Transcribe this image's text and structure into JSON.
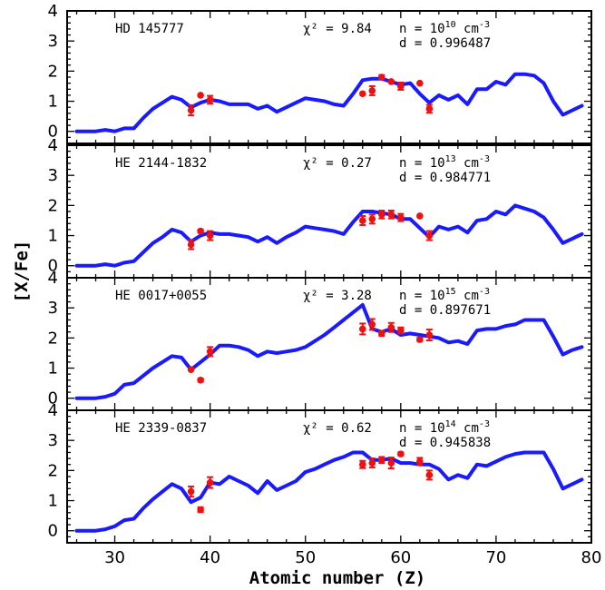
{
  "chart_data": {
    "type": "line",
    "xlabel": "Atomic number (Z)",
    "ylabel": "[X/Fe]",
    "xlim": [
      25,
      80
    ],
    "ylim": [
      -0.4,
      4
    ],
    "x_ticks": [
      "30",
      "40",
      "50",
      "60",
      "70",
      "80"
    ],
    "y_ticks": [
      "0",
      "1",
      "2",
      "3",
      "4"
    ],
    "line_color": "#1a1aff",
    "point_color": "#ee1111",
    "panels": [
      {
        "star": "HD 145777",
        "chi2_label": "χ² = 9.84",
        "n_label": "n = 10",
        "n_exp": "10",
        "n_unit": "cm",
        "n_unit_exp": "-3",
        "d_label": "d = 0.996487",
        "model": {
          "x": [
            26,
            28,
            29,
            30,
            31,
            32,
            33,
            34,
            35,
            36,
            37,
            38,
            39,
            40,
            41,
            42,
            43,
            44,
            45,
            46,
            47,
            48,
            49,
            50,
            51,
            52,
            53,
            54,
            55,
            56,
            57,
            58,
            59,
            60,
            61,
            62,
            63,
            64,
            65,
            66,
            67,
            68,
            69,
            70,
            71,
            72,
            73,
            74,
            75,
            76,
            77,
            78,
            79
          ],
          "y": [
            0,
            0,
            0.05,
            0,
            0.1,
            0.1,
            0.45,
            0.75,
            0.95,
            1.15,
            1.05,
            0.8,
            0.95,
            1.05,
            1.0,
            0.9,
            0.9,
            0.9,
            0.75,
            0.85,
            0.65,
            0.8,
            0.95,
            1.1,
            1.05,
            1.0,
            0.9,
            0.85,
            1.25,
            1.7,
            1.75,
            1.75,
            1.65,
            1.55,
            1.6,
            1.25,
            0.95,
            1.2,
            1.05,
            1.2,
            0.9,
            1.4,
            1.4,
            1.65,
            1.55,
            1.9,
            1.9,
            1.85,
            1.6,
            1.0,
            0.55,
            0.7,
            0.85
          ]
        },
        "points": [
          {
            "x": 38,
            "y": 0.7,
            "err": 0.17
          },
          {
            "x": 39,
            "y": 1.2,
            "err": 0
          },
          {
            "x": 40,
            "y": 1.05,
            "err": 0.13
          },
          {
            "x": 56,
            "y": 1.25,
            "err": 0
          },
          {
            "x": 57,
            "y": 1.35,
            "err": 0.15
          },
          {
            "x": 58,
            "y": 1.8,
            "err": 0.07
          },
          {
            "x": 59,
            "y": 1.65,
            "err": 0
          },
          {
            "x": 60,
            "y": 1.5,
            "err": 0.12
          },
          {
            "x": 62,
            "y": 1.6,
            "err": 0
          },
          {
            "x": 63,
            "y": 0.75,
            "err": 0.13
          }
        ]
      },
      {
        "star": "HE 2144-1832",
        "chi2_label": "χ² = 0.27",
        "n_label": "n = 10",
        "n_exp": "13",
        "n_unit": "cm",
        "n_unit_exp": "-3",
        "d_label": "d = 0.984771",
        "model": {
          "x": [
            26,
            28,
            29,
            30,
            31,
            32,
            33,
            34,
            35,
            36,
            37,
            38,
            39,
            40,
            41,
            42,
            43,
            44,
            45,
            46,
            47,
            48,
            49,
            50,
            51,
            52,
            53,
            54,
            55,
            56,
            57,
            58,
            59,
            60,
            61,
            62,
            63,
            64,
            65,
            66,
            67,
            68,
            69,
            70,
            71,
            72,
            73,
            74,
            75,
            76,
            77,
            78,
            79
          ],
          "y": [
            0,
            0,
            0.05,
            0,
            0.1,
            0.15,
            0.45,
            0.75,
            0.95,
            1.2,
            1.1,
            0.8,
            1.0,
            1.1,
            1.05,
            1.05,
            1.0,
            0.95,
            0.8,
            0.95,
            0.75,
            0.95,
            1.1,
            1.3,
            1.25,
            1.2,
            1.15,
            1.05,
            1.45,
            1.8,
            1.8,
            1.75,
            1.7,
            1.55,
            1.55,
            1.25,
            0.95,
            1.3,
            1.2,
            1.3,
            1.1,
            1.5,
            1.55,
            1.8,
            1.7,
            2.0,
            1.9,
            1.8,
            1.6,
            1.2,
            0.75,
            0.9,
            1.05
          ]
        },
        "points": [
          {
            "x": 38,
            "y": 0.7,
            "err": 0.15
          },
          {
            "x": 39,
            "y": 1.15,
            "err": 0.05
          },
          {
            "x": 40,
            "y": 1.0,
            "err": 0.15
          },
          {
            "x": 56,
            "y": 1.5,
            "err": 0.15
          },
          {
            "x": 57,
            "y": 1.55,
            "err": 0.15
          },
          {
            "x": 58,
            "y": 1.7,
            "err": 0.13
          },
          {
            "x": 59,
            "y": 1.7,
            "err": 0.13
          },
          {
            "x": 60,
            "y": 1.6,
            "err": 0.12
          },
          {
            "x": 62,
            "y": 1.65,
            "err": 0
          },
          {
            "x": 63,
            "y": 1.0,
            "err": 0.15
          }
        ]
      },
      {
        "star": "HE 0017+0055",
        "chi2_label": "χ² = 3.28",
        "n_label": "n = 10",
        "n_exp": "15",
        "n_unit": "cm",
        "n_unit_exp": "-3",
        "d_label": "d = 0.897671",
        "model": {
          "x": [
            26,
            28,
            29,
            30,
            31,
            32,
            33,
            34,
            35,
            36,
            37,
            38,
            39,
            40,
            41,
            42,
            43,
            44,
            45,
            46,
            47,
            48,
            49,
            50,
            51,
            52,
            53,
            54,
            55,
            56,
            57,
            58,
            59,
            60,
            61,
            62,
            63,
            64,
            65,
            66,
            67,
            68,
            69,
            70,
            71,
            72,
            73,
            74,
            75,
            76,
            77,
            78,
            79
          ],
          "y": [
            0,
            0,
            0.05,
            0.15,
            0.45,
            0.5,
            0.75,
            1.0,
            1.2,
            1.4,
            1.35,
            0.95,
            1.2,
            1.45,
            1.75,
            1.75,
            1.7,
            1.6,
            1.4,
            1.55,
            1.5,
            1.55,
            1.6,
            1.7,
            1.9,
            2.1,
            2.35,
            2.6,
            2.85,
            3.1,
            2.3,
            2.2,
            2.3,
            2.1,
            2.15,
            2.1,
            2.05,
            2.0,
            1.85,
            1.9,
            1.8,
            2.25,
            2.3,
            2.3,
            2.4,
            2.45,
            2.6,
            2.6,
            2.6,
            2.05,
            1.45,
            1.6,
            1.7
          ]
        },
        "points": [
          {
            "x": 38,
            "y": 0.95,
            "err": 0
          },
          {
            "x": 39,
            "y": 0.6,
            "err": 0.05
          },
          {
            "x": 40,
            "y": 1.55,
            "err": 0.15
          },
          {
            "x": 56,
            "y": 2.3,
            "err": 0.18
          },
          {
            "x": 57,
            "y": 2.45,
            "err": 0.18
          },
          {
            "x": 58,
            "y": 2.15,
            "err": 0.08
          },
          {
            "x": 59,
            "y": 2.35,
            "err": 0.15
          },
          {
            "x": 60,
            "y": 2.25,
            "err": 0.1
          },
          {
            "x": 62,
            "y": 1.95,
            "err": 0.05
          },
          {
            "x": 63,
            "y": 2.1,
            "err": 0.18
          }
        ]
      },
      {
        "star": "HE 2339-0837",
        "chi2_label": "χ² = 0.62",
        "n_label": "n = 10",
        "n_exp": "14",
        "n_unit": "cm",
        "n_unit_exp": "-3",
        "d_label": "d = 0.945838",
        "model": {
          "x": [
            26,
            28,
            29,
            30,
            31,
            32,
            33,
            34,
            35,
            36,
            37,
            38,
            39,
            40,
            41,
            42,
            43,
            44,
            45,
            46,
            47,
            48,
            49,
            50,
            51,
            52,
            53,
            54,
            55,
            56,
            57,
            58,
            59,
            60,
            61,
            62,
            63,
            64,
            65,
            66,
            67,
            68,
            69,
            70,
            71,
            72,
            73,
            74,
            75,
            76,
            77,
            78,
            79
          ],
          "y": [
            0,
            0,
            0.05,
            0.15,
            0.35,
            0.4,
            0.75,
            1.05,
            1.3,
            1.55,
            1.4,
            0.95,
            1.1,
            1.6,
            1.55,
            1.8,
            1.65,
            1.5,
            1.25,
            1.65,
            1.35,
            1.5,
            1.65,
            1.95,
            2.05,
            2.2,
            2.35,
            2.45,
            2.6,
            2.6,
            2.35,
            2.35,
            2.4,
            2.25,
            2.25,
            2.2,
            2.2,
            2.05,
            1.7,
            1.85,
            1.75,
            2.2,
            2.15,
            2.3,
            2.45,
            2.55,
            2.6,
            2.6,
            2.6,
            2.05,
            1.4,
            1.55,
            1.7
          ]
        },
        "points": [
          {
            "x": 38,
            "y": 1.3,
            "err": 0.17
          },
          {
            "x": 39,
            "y": 0.7,
            "err": 0.08
          },
          {
            "x": 40,
            "y": 1.6,
            "err": 0.18
          },
          {
            "x": 56,
            "y": 2.2,
            "err": 0.12
          },
          {
            "x": 57,
            "y": 2.25,
            "err": 0.15
          },
          {
            "x": 58,
            "y": 2.35,
            "err": 0.1
          },
          {
            "x": 59,
            "y": 2.25,
            "err": 0.18
          },
          {
            "x": 60,
            "y": 2.55,
            "err": 0.05
          },
          {
            "x": 62,
            "y": 2.3,
            "err": 0.12
          },
          {
            "x": 63,
            "y": 1.85,
            "err": 0.15
          }
        ]
      }
    ]
  }
}
